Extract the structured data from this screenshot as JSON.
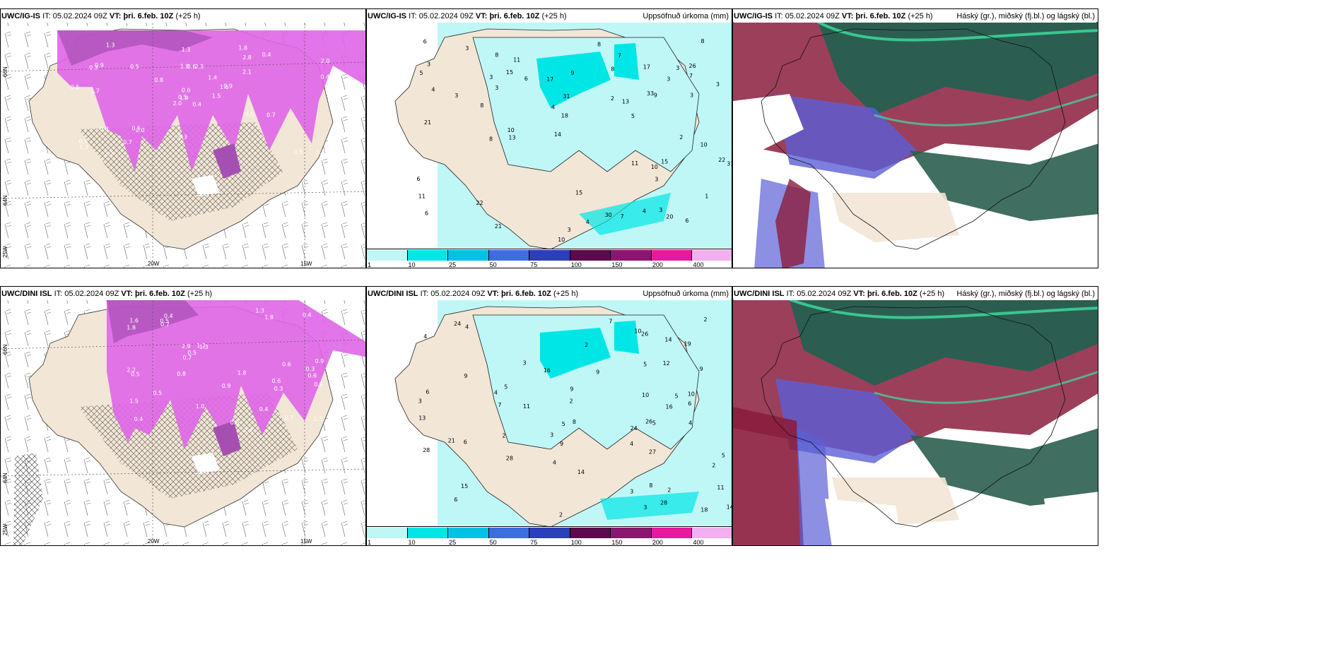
{
  "rows": [
    {
      "model": "UWC/IG-IS",
      "precip_values": [
        "4",
        "3",
        "5",
        "3",
        "3",
        "10",
        "11",
        "13",
        "26",
        "31",
        "22",
        "15",
        "33",
        "22",
        "21",
        "21",
        "10",
        "17",
        "6",
        "30",
        "20",
        "10",
        "18",
        "15",
        "17",
        "8",
        "7",
        "7",
        "3",
        "8",
        "6",
        "7",
        "8",
        "3",
        "3",
        "8",
        "6",
        "8",
        "8",
        "11",
        "9",
        "3",
        "4",
        "3",
        "4",
        "3",
        "5",
        "2",
        "1",
        "15",
        "31",
        "13",
        "14",
        "10",
        "9",
        "11",
        "6",
        "3",
        "4",
        "2",
        "3",
        "6",
        "3"
      ],
      "snow_values": [
        "0.4",
        "0.3",
        "1.9",
        "0.5",
        "1.6",
        "2.0",
        "1.8",
        "2.3",
        "2.8",
        "1.5",
        "1.3",
        "1.3",
        "1.7",
        "2.0",
        "2.0",
        "2.1",
        "2.2",
        "1.0",
        "1.4",
        "0.8",
        "0.8",
        "1.3",
        "0.7",
        "0.6",
        "0.9",
        "0.7",
        "0.9",
        "1.3",
        "0.5",
        "0.5",
        "0.4",
        "0.5",
        "0.3",
        "0.6",
        "0.5",
        "0.4",
        "0.5",
        "0.5"
      ]
    },
    {
      "model": "UWC/DINI ISL",
      "precip_values": [
        "4",
        "5",
        "5",
        "2",
        "3",
        "12",
        "10",
        "9",
        "11",
        "28",
        "26",
        "24",
        "28",
        "27",
        "28",
        "18",
        "19",
        "21",
        "14",
        "16",
        "9",
        "13",
        "10",
        "10",
        "6",
        "15",
        "9",
        "5",
        "14",
        "6",
        "9",
        "7",
        "6",
        "8",
        "11",
        "6",
        "9",
        "8",
        "5",
        "3",
        "3",
        "2",
        "2",
        "2",
        "3",
        "3",
        "2",
        "5",
        "5",
        "4",
        "4",
        "4",
        "2",
        "2",
        "4",
        "7",
        "26",
        "24",
        "16",
        "14",
        "4"
      ],
      "snow_values": [
        "0.6",
        "0.6",
        "0.4",
        "0.4",
        "1.3",
        "0.7",
        "1.5",
        "1.8",
        "2.9",
        "2.4",
        "1.8",
        "2.2",
        "1.6",
        "1.3",
        "1.0",
        "0.9",
        "0.9",
        "1.8",
        "1.2",
        "0.5",
        "0.6",
        "0.4",
        "0.7",
        "0.9",
        "1.3",
        "0.5",
        "0.3",
        "0.5",
        "0.7",
        "0.6",
        "0.8",
        "0.4",
        "0.5",
        "0.8",
        "0.3"
      ]
    }
  ],
  "header": {
    "it_label": "IT:",
    "it_value": "05.02.2024 09Z",
    "vt_label": "VT:",
    "vt_value": "þri. 6.feb. 10Z",
    "lead": "(+25 h)"
  },
  "panel_titles": {
    "snow": "",
    "precip": "Uppsöfnuð úrkoma (mm)",
    "cloud": "Háský (gr.), miðský (fj.bl.) og lágský (bl.)"
  },
  "axis_labels": {
    "lon_20": "20W",
    "lon_15": "15W",
    "lat_66": "66N",
    "lat_64": "64N",
    "lon_25": "25W"
  },
  "colorbar": {
    "labels": [
      "1",
      "10",
      "25",
      "50",
      "75",
      "100",
      "150",
      "200",
      "400"
    ],
    "colors": [
      "#bff7f7",
      "#00e6e6",
      "#00c2e6",
      "#3b6fe0",
      "#2b3fb8",
      "#5c0a4d",
      "#8a1670",
      "#e6199f",
      "#f2b0f0"
    ]
  },
  "colors": {
    "land": "#f2e6d6",
    "snow_magenta": "#e066e8",
    "snow_purple": "#a64fb3",
    "precip_cyan": "#bff7f7",
    "cloud_green": "#2b5e50",
    "cloud_red": "#8b1d3d",
    "cloud_blue": "#5b5fd6"
  }
}
